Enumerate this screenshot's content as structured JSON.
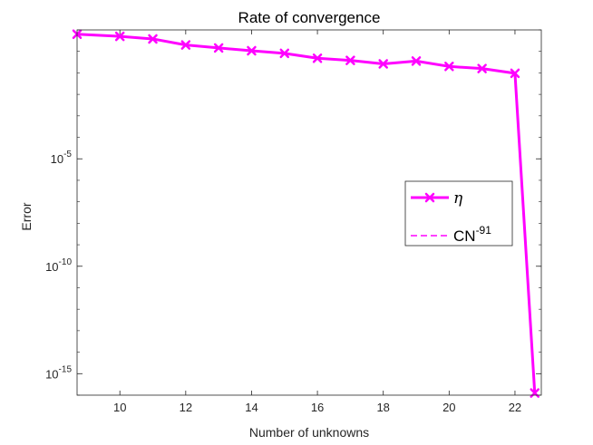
{
  "chart_data": {
    "type": "line",
    "title": "Rate of convergence",
    "xlabel": "Number of unknowns",
    "ylabel": "Error",
    "yscale": "log",
    "xlim": [
      8.7,
      22.8
    ],
    "ylim_exponent": [
      -16,
      1
    ],
    "x_ticks": [
      10,
      12,
      14,
      16,
      18,
      20,
      22
    ],
    "y_ticks": [
      {
        "exponent": -5,
        "base": "10",
        "sup": "-5"
      },
      {
        "exponent": -10,
        "base": "10",
        "sup": "-10"
      },
      {
        "exponent": -15,
        "base": "10",
        "sup": "-15"
      }
    ],
    "series": [
      {
        "name": "η",
        "color": "#ff00ff",
        "style": "solid-marker-x",
        "x": [
          8.7,
          10,
          11,
          12,
          13,
          14,
          15,
          16,
          17,
          18,
          19,
          20,
          21,
          22,
          22.6
        ],
        "y_log10": [
          0.8,
          0.7,
          0.58,
          0.3,
          0.16,
          0.03,
          -0.09,
          -0.32,
          -0.42,
          -0.58,
          -0.45,
          -0.7,
          -0.8,
          -1.02,
          -15.9
        ]
      },
      {
        "name": "CN",
        "sup": "-91",
        "color": "#ff00ff",
        "style": "dashed",
        "x": [],
        "y_log10": []
      }
    ],
    "legend": {
      "position": "right",
      "entries": [
        {
          "label": "η"
        },
        {
          "label": "CN",
          "sup": "-91"
        }
      ]
    }
  }
}
